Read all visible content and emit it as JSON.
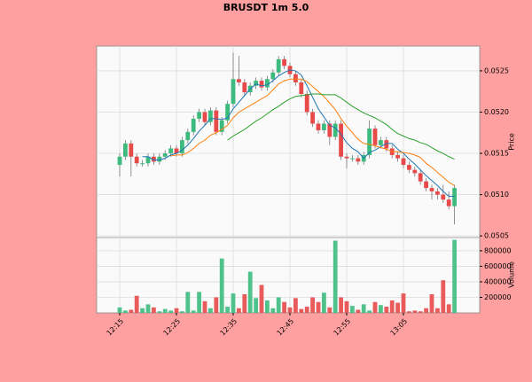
{
  "chart_data": {
    "type": "candlestick",
    "title": "BRUSDT 1m 5.0",
    "ylabel": "Price",
    "volume_label": "Volume",
    "grid": true,
    "up_color": "#3dbb7e",
    "down_color": "#e84a4a",
    "categories": [
      "12:15",
      null,
      null,
      null,
      null,
      null,
      null,
      null,
      null,
      null,
      "12:25",
      null,
      null,
      null,
      null,
      null,
      null,
      null,
      null,
      null,
      "12:35",
      null,
      null,
      null,
      null,
      null,
      null,
      null,
      null,
      null,
      "12:45",
      null,
      null,
      null,
      null,
      null,
      null,
      null,
      null,
      null,
      "12:55",
      null,
      null,
      null,
      null,
      null,
      null,
      null,
      null,
      null,
      "13:05",
      null,
      null,
      null,
      null,
      null,
      null,
      null,
      null,
      null
    ],
    "open": [
      0.05136,
      0.05146,
      0.05162,
      0.05146,
      0.05138,
      0.05138,
      0.05146,
      0.0514,
      0.05146,
      0.0515,
      0.05156,
      0.0515,
      0.05166,
      0.05176,
      0.05192,
      0.052,
      0.05188,
      0.05202,
      0.05176,
      0.0519,
      0.0521,
      0.0524,
      0.05236,
      0.05224,
      0.05232,
      0.05238,
      0.0523,
      0.0524,
      0.05248,
      0.05264,
      0.05256,
      0.05246,
      0.05236,
      0.05222,
      0.052,
      0.05186,
      0.05178,
      0.05186,
      0.0517,
      0.05186,
      0.05146,
      0.05144,
      0.05144,
      0.0514,
      0.05148,
      0.0518,
      0.0516,
      0.05166,
      0.05156,
      0.05148,
      0.05144,
      0.05136,
      0.0513,
      0.05126,
      0.05116,
      0.05108,
      0.05104,
      0.051,
      0.05094,
      0.05086
    ],
    "high": [
      0.0515,
      0.05166,
      0.05166,
      0.0515,
      0.05142,
      0.0515,
      0.0515,
      0.0515,
      0.05154,
      0.0516,
      0.0516,
      0.0517,
      0.0518,
      0.05196,
      0.05204,
      0.05204,
      0.05206,
      0.05206,
      0.05194,
      0.05214,
      0.05272,
      0.05268,
      0.0524,
      0.05236,
      0.05242,
      0.05242,
      0.05244,
      0.05252,
      0.05268,
      0.05268,
      0.0526,
      0.0525,
      0.0524,
      0.05226,
      0.05204,
      0.0519,
      0.0519,
      0.0519,
      0.0519,
      0.0519,
      0.0515,
      0.05148,
      0.05148,
      0.05152,
      0.0519,
      0.05184,
      0.0517,
      0.0517,
      0.0516,
      0.05152,
      0.05148,
      0.0514,
      0.05134,
      0.0513,
      0.0512,
      0.05112,
      0.05108,
      0.05112,
      0.05104,
      0.05112
    ],
    "low": [
      0.05122,
      0.05142,
      0.05122,
      0.05134,
      0.05134,
      0.05134,
      0.05136,
      0.05136,
      0.05142,
      0.05146,
      0.05146,
      0.05146,
      0.05162,
      0.05172,
      0.05188,
      0.05184,
      0.05184,
      0.05172,
      0.05172,
      0.05186,
      0.05206,
      0.05232,
      0.0522,
      0.0522,
      0.05228,
      0.05226,
      0.05226,
      0.05236,
      0.05244,
      0.05252,
      0.05242,
      0.05232,
      0.05218,
      0.05196,
      0.05182,
      0.05174,
      0.05174,
      0.0516,
      0.05166,
      0.05142,
      0.05132,
      0.0514,
      0.05136,
      0.05136,
      0.05144,
      0.05156,
      0.05156,
      0.05152,
      0.05144,
      0.0514,
      0.05132,
      0.05126,
      0.05122,
      0.05112,
      0.05104,
      0.05094,
      0.05094,
      0.0509,
      0.05082,
      0.05064
    ],
    "close": [
      0.05146,
      0.05162,
      0.05146,
      0.05138,
      0.05138,
      0.05146,
      0.0514,
      0.05146,
      0.0515,
      0.05156,
      0.0515,
      0.05166,
      0.05176,
      0.05192,
      0.052,
      0.05188,
      0.05202,
      0.05176,
      0.0519,
      0.0521,
      0.0524,
      0.05236,
      0.05224,
      0.05232,
      0.05238,
      0.0523,
      0.0524,
      0.05248,
      0.05264,
      0.05256,
      0.05246,
      0.05236,
      0.05222,
      0.052,
      0.05186,
      0.05178,
      0.05186,
      0.0517,
      0.05186,
      0.05146,
      0.05144,
      0.05144,
      0.0514,
      0.05148,
      0.0518,
      0.0516,
      0.05166,
      0.05156,
      0.05148,
      0.05144,
      0.05136,
      0.0513,
      0.05126,
      0.05116,
      0.05108,
      0.05104,
      0.051,
      0.05094,
      0.05086,
      0.05108
    ],
    "volume": [
      70000,
      30000,
      40000,
      220000,
      60000,
      110000,
      70000,
      20000,
      50000,
      30000,
      60000,
      20000,
      270000,
      30000,
      270000,
      150000,
      60000,
      200000,
      700000,
      80000,
      250000,
      60000,
      240000,
      530000,
      190000,
      360000,
      160000,
      60000,
      200000,
      140000,
      70000,
      190000,
      50000,
      80000,
      200000,
      140000,
      260000,
      70000,
      930000,
      200000,
      150000,
      90000,
      40000,
      110000,
      30000,
      140000,
      100000,
      80000,
      160000,
      130000,
      250000,
      20000,
      30000,
      20000,
      60000,
      240000,
      60000,
      420000,
      110000,
      940000
    ],
    "moving_averages": [
      {
        "color": "#1f77b4",
        "values": [
          null,
          null,
          null,
          null,
          0.05146,
          0.05146,
          0.05142,
          0.05142,
          0.05144,
          0.05148,
          0.0515,
          0.05154,
          0.0516,
          0.05168,
          0.05177,
          0.05184,
          0.05192,
          0.05192,
          0.05191,
          0.05193,
          0.05204,
          0.05212,
          0.0522,
          0.05228,
          0.05234,
          0.05232,
          0.05233,
          0.05238,
          0.05244,
          0.05248,
          0.05251,
          0.0525,
          0.05245,
          0.05232,
          0.05218,
          0.05204,
          0.05194,
          0.05184,
          0.05181,
          0.05173,
          0.05163,
          0.05156,
          0.05152,
          0.05144,
          0.05151,
          0.05154,
          0.05158,
          0.05162,
          0.05162,
          0.05155,
          0.0515,
          0.05143,
          0.05137,
          0.0513,
          0.05123,
          0.05117,
          0.05111,
          0.05104,
          0.05098,
          0.05098
        ]
      },
      {
        "color": "#ff7f0e",
        "values": [
          null,
          null,
          null,
          null,
          null,
          null,
          null,
          null,
          null,
          0.05147,
          0.05148,
          0.05148,
          0.05151,
          0.05156,
          0.05162,
          0.05166,
          0.05172,
          0.05175,
          0.05179,
          0.05184,
          0.05193,
          0.052,
          0.05204,
          0.05208,
          0.05212,
          0.05216,
          0.0522,
          0.05227,
          0.05234,
          0.05238,
          0.0524,
          0.0524,
          0.0524,
          0.05237,
          0.05231,
          0.05225,
          0.05219,
          0.05211,
          0.05203,
          0.05192,
          0.05183,
          0.05175,
          0.05167,
          0.05162,
          0.05161,
          0.05159,
          0.05157,
          0.05155,
          0.05152,
          0.05152,
          0.05151,
          0.0515,
          0.05148,
          0.05145,
          0.05138,
          0.05133,
          0.05127,
          0.05121,
          0.05115,
          0.05111
        ]
      },
      {
        "color": "#2ca02c",
        "values": [
          null,
          null,
          null,
          null,
          null,
          null,
          null,
          null,
          null,
          null,
          null,
          null,
          null,
          null,
          null,
          null,
          null,
          null,
          null,
          0.05166,
          0.05171,
          0.05175,
          0.05179,
          0.05184,
          0.05189,
          0.05193,
          0.05198,
          0.05203,
          0.05207,
          0.05212,
          0.05216,
          0.05219,
          0.0522,
          0.05221,
          0.05222,
          0.05222,
          0.05221,
          0.05221,
          0.05221,
          0.05217,
          0.05212,
          0.05207,
          0.05203,
          0.05199,
          0.05196,
          0.05193,
          0.05189,
          0.05185,
          0.05179,
          0.05174,
          0.05171,
          0.05168,
          0.05166,
          0.05163,
          0.05161,
          0.05157,
          0.05153,
          0.0515,
          0.05146,
          0.05143
        ]
      }
    ],
    "ylim": [
      0.05048,
      0.0528
    ],
    "yticks": [
      0.0505,
      {
        "value": 0.051,
        "label": "0.0510"
      },
      0.0515,
      {
        "value": 0.052,
        "label": "0.0520"
      },
      0.0525
    ],
    "volume_ylim": [
      0,
      970000
    ],
    "volume_yticks": [
      200000,
      400000,
      600000,
      800000
    ]
  }
}
